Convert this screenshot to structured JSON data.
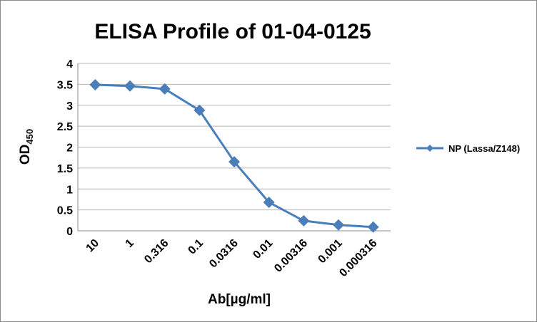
{
  "chart_data": {
    "type": "line",
    "title": "ELISA Profile of 01-04-0125",
    "xlabel": "Ab[µg/ml]",
    "ylabel_main": "OD",
    "ylabel_sub": "450",
    "categories": [
      "10",
      "1",
      "0.316",
      "0.1",
      "0.0316",
      "0.01",
      "0.00316",
      "0.001",
      "0.000316"
    ],
    "ylim": [
      0,
      4
    ],
    "yticks": [
      "0",
      "0.5",
      "1",
      "1.5",
      "2",
      "2.5",
      "3",
      "3.5",
      "4"
    ],
    "grid": true,
    "legend_position": "right",
    "series": [
      {
        "name": "NP (Lassa/Z148)",
        "color": "#4a7ebb",
        "marker": "diamond",
        "values": [
          3.49,
          3.46,
          3.39,
          2.88,
          1.65,
          0.68,
          0.24,
          0.14,
          0.09
        ]
      }
    ]
  }
}
